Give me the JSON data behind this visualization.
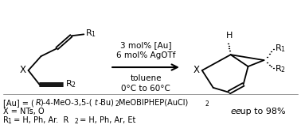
{
  "bg_color": "#ffffff",
  "fig_width": 3.78,
  "fig_height": 1.77,
  "dpi": 100,
  "reaction_conditions": [
    "3 mol% [Au]",
    "6 mol% AgOTf",
    "toluene",
    "0°C to 60°C"
  ],
  "ee_italic": "ee",
  "ee_rest": " up to 98%",
  "footnote_line2": "X = NTs, O"
}
